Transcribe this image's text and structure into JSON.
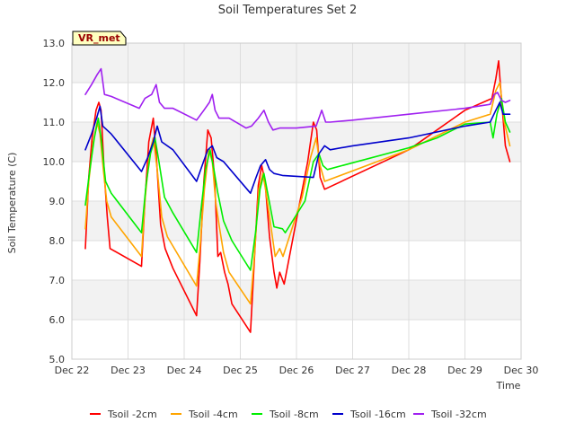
{
  "chart_data": {
    "type": "line",
    "title": "Soil Temperatures Set 2",
    "xlabel": "Time",
    "ylabel": "Soil Temperature (C)",
    "xlim": [
      0,
      8
    ],
    "ylim": [
      5.0,
      13.0
    ],
    "x_ticks": [
      {
        "x": 0,
        "label": "Dec 22"
      },
      {
        "x": 1,
        "label": "Dec 23"
      },
      {
        "x": 2,
        "label": "Dec 24"
      },
      {
        "x": 3,
        "label": "Dec 25"
      },
      {
        "x": 4,
        "label": "Dec 26"
      },
      {
        "x": 5,
        "label": "Dec 27"
      },
      {
        "x": 6,
        "label": "Dec 28"
      },
      {
        "x": 7,
        "label": "Dec 29"
      },
      {
        "x": 8,
        "label": "Dec 30"
      }
    ],
    "y_ticks": [
      {
        "y": 5.0,
        "label": "5.0"
      },
      {
        "y": 6.0,
        "label": "6.0"
      },
      {
        "y": 7.0,
        "label": "7.0"
      },
      {
        "y": 8.0,
        "label": "8.0"
      },
      {
        "y": 9.0,
        "label": "9.0"
      },
      {
        "y": 10.0,
        "label": "10.0"
      },
      {
        "y": 11.0,
        "label": "11.0"
      },
      {
        "y": 12.0,
        "label": "12.0"
      },
      {
        "y": 13.0,
        "label": "13.0"
      }
    ],
    "grid": true,
    "legend_position": "bottom",
    "annotation": "VR_met",
    "series": [
      {
        "name": "Tsoil -2cm",
        "color": "#ff0000",
        "points": [
          [
            0.24,
            7.8
          ],
          [
            0.3,
            9.6
          ],
          [
            0.36,
            10.6
          ],
          [
            0.43,
            11.3
          ],
          [
            0.48,
            11.5
          ],
          [
            0.52,
            11.3
          ],
          [
            0.58,
            9.6
          ],
          [
            0.63,
            8.6
          ],
          [
            0.68,
            7.8
          ],
          [
            1.24,
            7.35
          ],
          [
            1.3,
            9.0
          ],
          [
            1.37,
            10.5
          ],
          [
            1.45,
            11.1
          ],
          [
            1.5,
            10.2
          ],
          [
            1.58,
            8.4
          ],
          [
            1.66,
            7.8
          ],
          [
            1.8,
            7.3
          ],
          [
            2.22,
            6.1
          ],
          [
            2.28,
            7.5
          ],
          [
            2.35,
            9.5
          ],
          [
            2.42,
            10.8
          ],
          [
            2.48,
            10.6
          ],
          [
            2.54,
            9.6
          ],
          [
            2.6,
            7.6
          ],
          [
            2.65,
            7.7
          ],
          [
            2.72,
            7.2
          ],
          [
            2.78,
            6.9
          ],
          [
            2.85,
            6.4
          ],
          [
            3.18,
            5.68
          ],
          [
            3.25,
            7.5
          ],
          [
            3.32,
            9.4
          ],
          [
            3.38,
            9.9
          ],
          [
            3.44,
            9.5
          ],
          [
            3.52,
            8.1
          ],
          [
            3.6,
            7.2
          ],
          [
            3.65,
            6.8
          ],
          [
            3.7,
            7.2
          ],
          [
            3.78,
            6.9
          ],
          [
            4.05,
            8.9
          ],
          [
            4.2,
            10.0
          ],
          [
            4.3,
            11.0
          ],
          [
            4.36,
            10.8
          ],
          [
            4.42,
            9.6
          ],
          [
            4.5,
            9.3
          ],
          [
            6.0,
            10.3
          ],
          [
            6.5,
            10.8
          ],
          [
            7.0,
            11.3
          ],
          [
            7.48,
            11.6
          ],
          [
            7.55,
            12.1
          ],
          [
            7.6,
            12.55
          ],
          [
            7.65,
            11.6
          ],
          [
            7.72,
            10.4
          ],
          [
            7.8,
            10.0
          ]
        ]
      },
      {
        "name": "Tsoil -4cm",
        "color": "#ffa500",
        "points": [
          [
            0.24,
            8.3
          ],
          [
            0.3,
            9.5
          ],
          [
            0.38,
            10.5
          ],
          [
            0.45,
            11.0
          ],
          [
            0.5,
            10.7
          ],
          [
            0.56,
            9.8
          ],
          [
            0.62,
            9.0
          ],
          [
            0.7,
            8.6
          ],
          [
            1.24,
            7.6
          ],
          [
            1.3,
            9.0
          ],
          [
            1.38,
            10.2
          ],
          [
            1.45,
            10.6
          ],
          [
            1.52,
            9.8
          ],
          [
            1.6,
            8.6
          ],
          [
            1.7,
            8.1
          ],
          [
            2.22,
            6.85
          ],
          [
            2.28,
            7.8
          ],
          [
            2.36,
            9.3
          ],
          [
            2.44,
            10.3
          ],
          [
            2.5,
            10.0
          ],
          [
            2.56,
            9.0
          ],
          [
            2.62,
            8.4
          ],
          [
            2.7,
            7.7
          ],
          [
            2.8,
            7.2
          ],
          [
            3.18,
            6.4
          ],
          [
            3.25,
            7.6
          ],
          [
            3.33,
            9.3
          ],
          [
            3.4,
            9.7
          ],
          [
            3.46,
            9.2
          ],
          [
            3.55,
            8.3
          ],
          [
            3.62,
            7.6
          ],
          [
            3.7,
            7.8
          ],
          [
            3.76,
            7.6
          ],
          [
            4.1,
            9.1
          ],
          [
            4.25,
            10.1
          ],
          [
            4.35,
            10.6
          ],
          [
            4.42,
            9.9
          ],
          [
            4.5,
            9.5
          ],
          [
            6.0,
            10.3
          ],
          [
            6.5,
            10.65
          ],
          [
            7.0,
            11.0
          ],
          [
            7.45,
            11.2
          ],
          [
            7.55,
            11.8
          ],
          [
            7.62,
            12.0
          ],
          [
            7.7,
            11.0
          ],
          [
            7.8,
            10.4
          ]
        ]
      },
      {
        "name": "Tsoil -8cm",
        "color": "#00ee00",
        "points": [
          [
            0.24,
            8.9
          ],
          [
            0.32,
            9.8
          ],
          [
            0.4,
            10.6
          ],
          [
            0.47,
            11.1
          ],
          [
            0.52,
            10.6
          ],
          [
            0.6,
            9.5
          ],
          [
            0.7,
            9.2
          ],
          [
            1.24,
            8.2
          ],
          [
            1.32,
            9.4
          ],
          [
            1.4,
            10.2
          ],
          [
            1.48,
            10.6
          ],
          [
            1.55,
            10.0
          ],
          [
            1.65,
            9.1
          ],
          [
            1.8,
            8.7
          ],
          [
            2.22,
            7.7
          ],
          [
            2.3,
            8.8
          ],
          [
            2.38,
            9.8
          ],
          [
            2.46,
            10.3
          ],
          [
            2.53,
            9.8
          ],
          [
            2.6,
            9.2
          ],
          [
            2.7,
            8.5
          ],
          [
            2.85,
            8.0
          ],
          [
            3.18,
            7.25
          ],
          [
            3.27,
            8.2
          ],
          [
            3.35,
            9.3
          ],
          [
            3.42,
            9.7
          ],
          [
            3.5,
            9.1
          ],
          [
            3.6,
            8.35
          ],
          [
            3.75,
            8.3
          ],
          [
            3.8,
            8.2
          ],
          [
            4.15,
            9.0
          ],
          [
            4.3,
            10.0
          ],
          [
            4.4,
            10.2
          ],
          [
            4.47,
            9.9
          ],
          [
            4.55,
            9.8
          ],
          [
            6.0,
            10.35
          ],
          [
            6.5,
            10.6
          ],
          [
            7.0,
            10.95
          ],
          [
            7.45,
            11.0
          ],
          [
            7.5,
            10.6
          ],
          [
            7.57,
            11.2
          ],
          [
            7.65,
            11.6
          ],
          [
            7.72,
            11.0
          ],
          [
            7.8,
            10.75
          ]
        ]
      },
      {
        "name": "Tsoil -16cm",
        "color": "#0000cc",
        "points": [
          [
            0.24,
            10.3
          ],
          [
            0.35,
            10.7
          ],
          [
            0.44,
            11.1
          ],
          [
            0.5,
            11.4
          ],
          [
            0.55,
            10.9
          ],
          [
            0.7,
            10.7
          ],
          [
            1.24,
            9.75
          ],
          [
            1.35,
            10.1
          ],
          [
            1.45,
            10.5
          ],
          [
            1.52,
            10.9
          ],
          [
            1.6,
            10.5
          ],
          [
            1.8,
            10.3
          ],
          [
            2.22,
            9.5
          ],
          [
            2.32,
            9.9
          ],
          [
            2.42,
            10.3
          ],
          [
            2.5,
            10.4
          ],
          [
            2.58,
            10.1
          ],
          [
            2.7,
            10.0
          ],
          [
            3.18,
            9.2
          ],
          [
            3.28,
            9.6
          ],
          [
            3.36,
            9.9
          ],
          [
            3.45,
            10.05
          ],
          [
            3.52,
            9.8
          ],
          [
            3.6,
            9.7
          ],
          [
            3.75,
            9.65
          ],
          [
            4.3,
            9.6
          ],
          [
            4.4,
            10.2
          ],
          [
            4.5,
            10.4
          ],
          [
            4.6,
            10.3
          ],
          [
            5.0,
            10.4
          ],
          [
            6.0,
            10.6
          ],
          [
            7.0,
            10.9
          ],
          [
            7.45,
            11.0
          ],
          [
            7.55,
            11.3
          ],
          [
            7.62,
            11.5
          ],
          [
            7.68,
            11.2
          ],
          [
            7.8,
            11.2
          ]
        ]
      },
      {
        "name": "Tsoil -32cm",
        "color": "#a020f0",
        "points": [
          [
            0.24,
            11.7
          ],
          [
            0.35,
            11.95
          ],
          [
            0.45,
            12.2
          ],
          [
            0.52,
            12.35
          ],
          [
            0.58,
            11.7
          ],
          [
            0.7,
            11.65
          ],
          [
            1.2,
            11.35
          ],
          [
            1.3,
            11.6
          ],
          [
            1.42,
            11.7
          ],
          [
            1.5,
            11.95
          ],
          [
            1.56,
            11.5
          ],
          [
            1.65,
            11.35
          ],
          [
            1.8,
            11.35
          ],
          [
            2.22,
            11.05
          ],
          [
            2.35,
            11.3
          ],
          [
            2.45,
            11.5
          ],
          [
            2.5,
            11.7
          ],
          [
            2.55,
            11.3
          ],
          [
            2.62,
            11.1
          ],
          [
            2.8,
            11.1
          ],
          [
            3.1,
            10.85
          ],
          [
            3.2,
            10.9
          ],
          [
            3.32,
            11.1
          ],
          [
            3.42,
            11.3
          ],
          [
            3.5,
            11.0
          ],
          [
            3.58,
            10.8
          ],
          [
            3.7,
            10.85
          ],
          [
            4.0,
            10.85
          ],
          [
            4.35,
            10.9
          ],
          [
            4.45,
            11.3
          ],
          [
            4.52,
            11.0
          ],
          [
            4.6,
            11.0
          ],
          [
            5.0,
            11.05
          ],
          [
            6.0,
            11.2
          ],
          [
            7.0,
            11.35
          ],
          [
            7.45,
            11.45
          ],
          [
            7.52,
            11.7
          ],
          [
            7.58,
            11.75
          ],
          [
            7.65,
            11.55
          ],
          [
            7.72,
            11.5
          ],
          [
            7.8,
            11.55
          ]
        ]
      }
    ]
  }
}
